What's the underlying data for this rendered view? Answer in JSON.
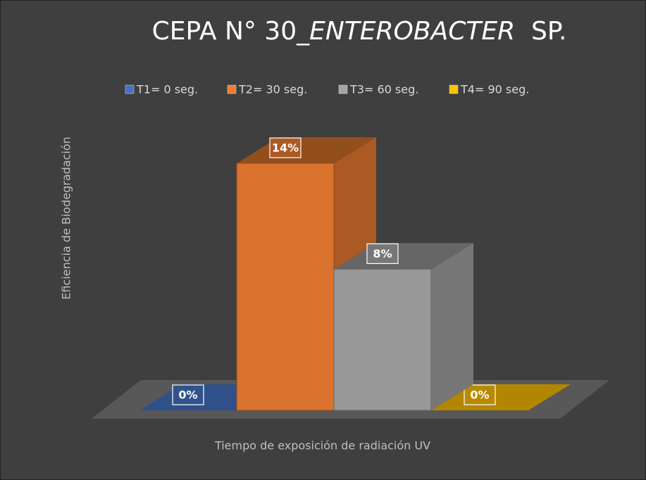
{
  "chart_data": {
    "type": "bar",
    "title": [
      "CEPA N° 30_",
      "ENTEROBACTER",
      "  SP."
    ],
    "x_label": "Tiempo de exposición de radiación UV",
    "y_label": "Eficiencia de Biodegradación",
    "legend": "top",
    "series": [
      {
        "name": "T1= 0 seg.",
        "color": "#4472c4",
        "values": [
          0
        ],
        "value_labels": [
          "0%"
        ]
      },
      {
        "name": "T2= 30 seg.",
        "color": "#ed7d31",
        "values": [
          14
        ],
        "value_labels": [
          "14%"
        ]
      },
      {
        "name": "T3= 60 seg.",
        "color": "#a5a5a5",
        "values": [
          8
        ],
        "value_labels": [
          "8%"
        ]
      },
      {
        "name": "T4= 90 seg.",
        "color": "#ffc000",
        "values": [
          0
        ],
        "value_labels": [
          "0%"
        ]
      }
    ]
  }
}
